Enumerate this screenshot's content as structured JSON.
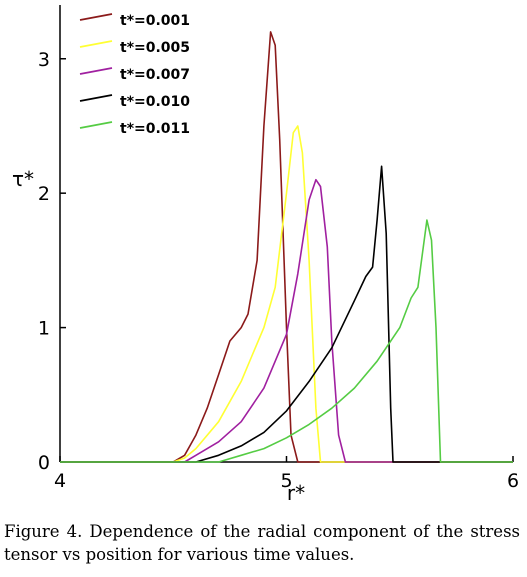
{
  "chart_data": {
    "type": "line",
    "title": "",
    "xlabel": "r*",
    "ylabel": "τ*",
    "xlim": [
      4,
      6
    ],
    "ylim": [
      0,
      3.4
    ],
    "xticks": [
      4,
      5,
      6
    ],
    "yticks": [
      0,
      1,
      2,
      3
    ],
    "grid": false,
    "legend_position": "top-left",
    "series": [
      {
        "name": "t*=0.001",
        "color": "#8b1a1a",
        "x": [
          4,
          4.5,
          4.55,
          4.6,
          4.65,
          4.7,
          4.75,
          4.8,
          4.83,
          4.87,
          4.9,
          4.93,
          4.95,
          4.97,
          5.0,
          5.02,
          5.05,
          5.1,
          6
        ],
        "y": [
          0,
          0,
          0.05,
          0.2,
          0.4,
          0.65,
          0.9,
          1.0,
          1.1,
          1.5,
          2.5,
          3.2,
          3.1,
          2.4,
          1.0,
          0.2,
          0,
          0,
          0
        ]
      },
      {
        "name": "t*=0.005",
        "color": "#ffff33",
        "x": [
          4,
          4.5,
          4.55,
          4.6,
          4.7,
          4.8,
          4.85,
          4.9,
          4.95,
          5.0,
          5.03,
          5.05,
          5.07,
          5.1,
          5.13,
          5.15,
          5.2,
          6
        ],
        "y": [
          0,
          0,
          0.03,
          0.1,
          0.3,
          0.6,
          0.8,
          1.0,
          1.3,
          2.0,
          2.45,
          2.5,
          2.3,
          1.5,
          0.4,
          0,
          0,
          0
        ]
      },
      {
        "name": "t*=0.007",
        "color": "#a020a0",
        "x": [
          4,
          4.55,
          4.6,
          4.7,
          4.8,
          4.9,
          5.0,
          5.05,
          5.1,
          5.13,
          5.15,
          5.18,
          5.2,
          5.23,
          5.26,
          5.3,
          6
        ],
        "y": [
          0,
          0,
          0.05,
          0.15,
          0.3,
          0.55,
          0.95,
          1.4,
          1.95,
          2.1,
          2.05,
          1.6,
          0.9,
          0.2,
          0,
          0,
          0
        ]
      },
      {
        "name": "t*=0.010",
        "color": "#000000",
        "x": [
          4,
          4.6,
          4.7,
          4.8,
          4.9,
          5.0,
          5.1,
          5.2,
          5.3,
          5.35,
          5.38,
          5.4,
          5.42,
          5.44,
          5.46,
          5.47,
          5.5,
          6
        ],
        "y": [
          0,
          0,
          0.05,
          0.12,
          0.22,
          0.38,
          0.6,
          0.85,
          1.2,
          1.38,
          1.45,
          1.8,
          2.2,
          1.7,
          0.4,
          0,
          0,
          0
        ]
      },
      {
        "name": "t*=0.011",
        "color": "#55cc44",
        "x": [
          4,
          4.7,
          4.8,
          4.9,
          5.0,
          5.1,
          5.2,
          5.3,
          5.4,
          5.5,
          5.55,
          5.58,
          5.6,
          5.62,
          5.64,
          5.66,
          5.68,
          5.7,
          6
        ],
        "y": [
          0,
          0,
          0.05,
          0.1,
          0.18,
          0.28,
          0.4,
          0.55,
          0.75,
          1.0,
          1.22,
          1.3,
          1.55,
          1.8,
          1.65,
          1.0,
          0,
          0,
          0
        ]
      }
    ]
  },
  "caption": "Figure 4. Dependence of the radial component of the stress tensor vs position for various time values."
}
